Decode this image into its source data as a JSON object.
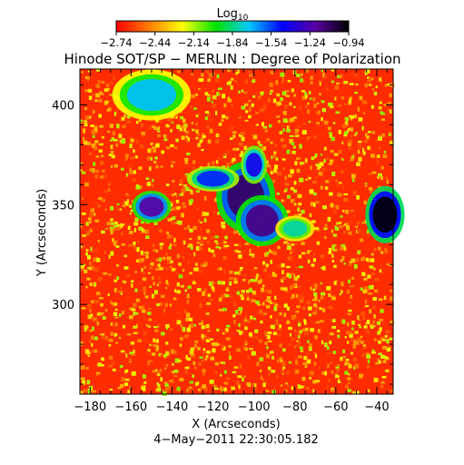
{
  "chart_data": {
    "type": "heatmap",
    "title": "Hinode SOT/SP − MERLIN : Degree of Polarization",
    "colorbar": {
      "label_base": "Log",
      "label_sub": "10",
      "min": -2.74,
      "max": -0.94,
      "tick_labels": [
        "−2.74",
        "−2.44",
        "−2.14",
        "−1.84",
        "−1.54",
        "−1.24",
        "−0.94"
      ],
      "colormap": [
        "#ff0000",
        "#ff7f00",
        "#ffff00",
        "#00e400",
        "#00c8ff",
        "#0000ff",
        "#5a00a0",
        "#000000"
      ]
    },
    "xlabel": "X (Arcseconds)",
    "ylabel": "Y (Arcseconds)",
    "xlim": [
      -185,
      -32
    ],
    "ylim": [
      255,
      418
    ],
    "x_ticks": [
      -180,
      -160,
      -140,
      -120,
      -100,
      -80,
      -60,
      -40
    ],
    "x_tick_labels": [
      "−180",
      "−160",
      "−140",
      "−120",
      "−100",
      "−80",
      "−60",
      "−40"
    ],
    "y_ticks": [
      300,
      350,
      400
    ],
    "y_tick_labels": [
      "300",
      "350",
      "400"
    ],
    "footer": "4−May−2011 22:30:05.182",
    "background_level": -2.65,
    "high_polarization_regions": [
      {
        "x": -104,
        "y": 354,
        "rx": 9,
        "ry": 11,
        "level": -1.1
      },
      {
        "x": -96,
        "y": 342,
        "rx": 8,
        "ry": 8,
        "level": -1.15
      },
      {
        "x": -150,
        "y": 349,
        "rx": 6,
        "ry": 5,
        "level": -1.2
      },
      {
        "x": -120,
        "y": 363,
        "rx": 8,
        "ry": 4,
        "level": -1.5
      },
      {
        "x": -36,
        "y": 345,
        "rx": 6,
        "ry": 9,
        "level": -0.95
      },
      {
        "x": -150,
        "y": 405,
        "rx": 12,
        "ry": 8,
        "level": -1.7
      },
      {
        "x": -80,
        "y": 338,
        "rx": 6,
        "ry": 4,
        "level": -1.8
      },
      {
        "x": -100,
        "y": 370,
        "rx": 4,
        "ry": 6,
        "level": -1.4
      }
    ]
  }
}
